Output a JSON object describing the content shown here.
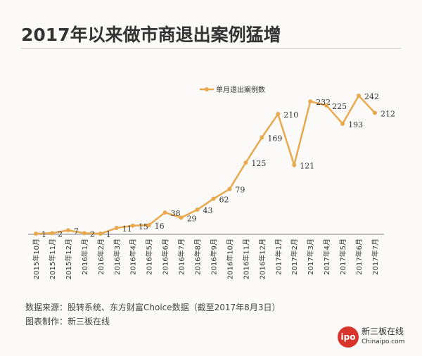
{
  "chart_data": {
    "type": "line",
    "title": "2017年以来做市商退出案例猛增",
    "categories": [
      "2015年10月",
      "2015年11月",
      "2015年12月",
      "2016年1月",
      "2016年2月",
      "2016年3月",
      "2016年4月",
      "2016年5月",
      "2016年6月",
      "2016年7月",
      "2016年8月",
      "2016年9月",
      "2016年10月",
      "2016年11月",
      "2016年12月",
      "2017年1月",
      "2017年2月",
      "2017年3月",
      "2017年4月",
      "2017年5月",
      "2017年6月",
      "2017年7月"
    ],
    "series": [
      {
        "name": "单月退出案例数",
        "values": [
          1,
          2,
          7,
          2,
          1,
          11,
          15,
          16,
          38,
          29,
          43,
          62,
          79,
          125,
          169,
          210,
          121,
          232,
          225,
          193,
          242,
          212
        ],
        "color": "#e8a94f"
      }
    ],
    "ylim": [
      0,
      250
    ],
    "grid": false,
    "legend": "top-center",
    "data_labels": true
  },
  "footer": {
    "source": "数据来源：股转系统、东方财富Choice数据（截至2017年8月3日）",
    "maker": "图表制作：新三板在线"
  },
  "logo": {
    "mark": "ipo",
    "text1": "新三板在线",
    "text2": "Chinaipo.com"
  }
}
